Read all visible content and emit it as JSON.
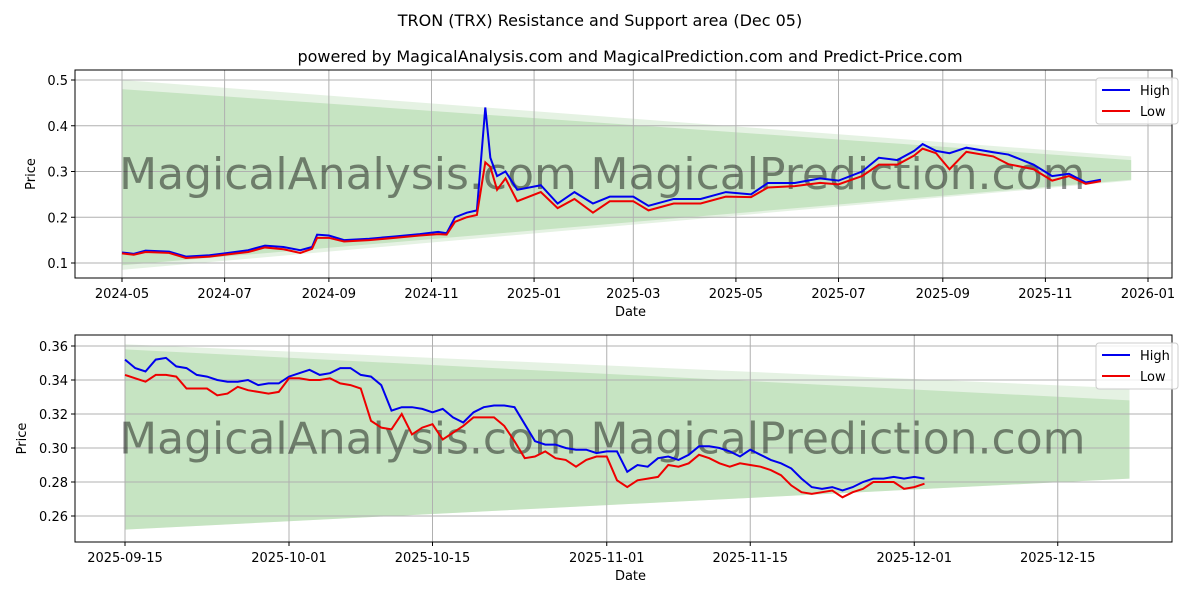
{
  "title": "TRON (TRX) Resistance and Support area (Dec 05)",
  "subtitle": "powered by MagicalAnalysis.com and MagicalPrediction.com and Predict-Price.com",
  "watermarks": [
    "MagicalAnalysis.com",
    "MagicalPrediction.com"
  ],
  "colors": {
    "high": "#0000ee",
    "low": "#ee0000",
    "band": "#a8d5a2"
  },
  "chart_data": [
    {
      "type": "line",
      "xlabel": "Date",
      "ylabel": "Price",
      "legend": {
        "position": "top-right",
        "entries": [
          "High",
          "Low"
        ]
      },
      "grid": true,
      "x_start": "2024-05-01",
      "x_ticks": [
        "2024-05",
        "2024-07",
        "2024-09",
        "2024-11",
        "2025-01",
        "2025-03",
        "2025-05",
        "2025-07",
        "2025-09",
        "2025-11",
        "2026-01"
      ],
      "y_ticks": [
        "0.1",
        "0.2",
        "0.3",
        "0.4",
        "0.5"
      ],
      "ylim": [
        0.065,
        0.52
      ],
      "band": {
        "start": "2024-05-01",
        "end": "2025-12-22",
        "upper_outer": [
          0.5,
          0.333
        ],
        "upper_inner": [
          0.48,
          0.325
        ],
        "lower": [
          0.095,
          0.282
        ],
        "lower_outer": [
          0.085,
          0.28
        ]
      },
      "series_points": [
        [
          "2024-05-01",
          0.123,
          0.121
        ],
        [
          "2024-05-08",
          0.12,
          0.118
        ],
        [
          "2024-05-15",
          0.127,
          0.124
        ],
        [
          "2024-05-29",
          0.125,
          0.122
        ],
        [
          "2024-06-08",
          0.114,
          0.111
        ],
        [
          "2024-06-22",
          0.117,
          0.114
        ],
        [
          "2024-07-01",
          0.121,
          0.118
        ],
        [
          "2024-07-15",
          0.128,
          0.124
        ],
        [
          "2024-07-25",
          0.138,
          0.134
        ],
        [
          "2024-08-05",
          0.135,
          0.13
        ],
        [
          "2024-08-15",
          0.128,
          0.122
        ],
        [
          "2024-08-22",
          0.135,
          0.131
        ],
        [
          "2024-08-25",
          0.162,
          0.155
        ],
        [
          "2024-09-01",
          0.16,
          0.155
        ],
        [
          "2024-09-10",
          0.15,
          0.147
        ],
        [
          "2024-09-25",
          0.153,
          0.15
        ],
        [
          "2024-10-10",
          0.158,
          0.155
        ],
        [
          "2024-10-25",
          0.163,
          0.16
        ],
        [
          "2024-11-05",
          0.168,
          0.163
        ],
        [
          "2024-11-10",
          0.165,
          0.162
        ],
        [
          "2024-11-15",
          0.2,
          0.19
        ],
        [
          "2024-11-22",
          0.21,
          0.2
        ],
        [
          "2024-11-28",
          0.215,
          0.205
        ],
        [
          "2024-12-03",
          0.44,
          0.32
        ],
        [
          "2024-12-06",
          0.33,
          0.31
        ],
        [
          "2024-12-10",
          0.29,
          0.26
        ],
        [
          "2024-12-15",
          0.3,
          0.285
        ],
        [
          "2024-12-22",
          0.26,
          0.235
        ],
        [
          "2025-01-05",
          0.27,
          0.255
        ],
        [
          "2025-01-15",
          0.23,
          0.22
        ],
        [
          "2025-01-25",
          0.255,
          0.24
        ],
        [
          "2025-02-05",
          0.23,
          0.21
        ],
        [
          "2025-02-15",
          0.245,
          0.235
        ],
        [
          "2025-03-01",
          0.245,
          0.235
        ],
        [
          "2025-03-10",
          0.225,
          0.215
        ],
        [
          "2025-03-25",
          0.24,
          0.23
        ],
        [
          "2025-04-10",
          0.24,
          0.23
        ],
        [
          "2025-04-25",
          0.255,
          0.245
        ],
        [
          "2025-05-10",
          0.25,
          0.244
        ],
        [
          "2025-05-20",
          0.275,
          0.265
        ],
        [
          "2025-06-05",
          0.275,
          0.268
        ],
        [
          "2025-06-20",
          0.285,
          0.275
        ],
        [
          "2025-07-01",
          0.28,
          0.272
        ],
        [
          "2025-07-15",
          0.3,
          0.29
        ],
        [
          "2025-07-25",
          0.33,
          0.315
        ],
        [
          "2025-08-05",
          0.325,
          0.315
        ],
        [
          "2025-08-15",
          0.345,
          0.335
        ],
        [
          "2025-08-20",
          0.36,
          0.35
        ],
        [
          "2025-08-28",
          0.345,
          0.34
        ],
        [
          "2025-09-05",
          0.34,
          0.305
        ],
        [
          "2025-09-15",
          0.352,
          0.343
        ],
        [
          "2025-10-01",
          0.342,
          0.333
        ],
        [
          "2025-10-10",
          0.337,
          0.316
        ],
        [
          "2025-10-25",
          0.315,
          0.305
        ],
        [
          "2025-11-05",
          0.29,
          0.28
        ],
        [
          "2025-11-15",
          0.295,
          0.29
        ],
        [
          "2025-11-25",
          0.276,
          0.273
        ],
        [
          "2025-12-04",
          0.282,
          0.279
        ]
      ]
    },
    {
      "type": "line",
      "xlabel": "Date",
      "ylabel": "Price",
      "legend": {
        "position": "top-right",
        "entries": [
          "High",
          "Low"
        ]
      },
      "grid": true,
      "x_start": "2025-09-15",
      "x_ticks": [
        "2025-09-15",
        "2025-10-01",
        "2025-10-15",
        "2025-11-01",
        "2025-11-15",
        "2025-12-01",
        "2025-12-15"
      ],
      "y_ticks": [
        "0.26",
        "0.28",
        "0.30",
        "0.32",
        "0.34",
        "0.36"
      ],
      "ylim": [
        0.245,
        0.367
      ],
      "band": {
        "start": "2025-09-15",
        "end": "2025-12-22",
        "upper_outer": [
          0.361,
          0.335
        ],
        "upper_inner": [
          0.358,
          0.328
        ],
        "lower": [
          0.252,
          0.282
        ],
        "lower_outer": [
          0.252,
          0.282
        ]
      },
      "daily_high": [
        0.352,
        0.347,
        0.345,
        0.352,
        0.353,
        0.348,
        0.347,
        0.343,
        0.342,
        0.34,
        0.339,
        0.339,
        0.34,
        0.337,
        0.338,
        0.338,
        0.342,
        0.344,
        0.346,
        0.343,
        0.344,
        0.347,
        0.347,
        0.343,
        0.342,
        0.337,
        0.322,
        0.324,
        0.324,
        0.323,
        0.321,
        0.323,
        0.318,
        0.315,
        0.321,
        0.324,
        0.325,
        0.325,
        0.324,
        0.314,
        0.304,
        0.302,
        0.302,
        0.3,
        0.299,
        0.299,
        0.297,
        0.298,
        0.298,
        0.286,
        0.29,
        0.289,
        0.294,
        0.295,
        0.293,
        0.296,
        0.301,
        0.301,
        0.3,
        0.298,
        0.295,
        0.299,
        0.296,
        0.293,
        0.291,
        0.288,
        0.282,
        0.277,
        0.276,
        0.277,
        0.275,
        0.277,
        0.28,
        0.282,
        0.282,
        0.283,
        0.282,
        0.283,
        0.282
      ],
      "daily_low": [
        0.343,
        0.341,
        0.339,
        0.343,
        0.343,
        0.342,
        0.335,
        0.335,
        0.335,
        0.331,
        0.332,
        0.336,
        0.334,
        0.333,
        0.332,
        0.333,
        0.341,
        0.341,
        0.34,
        0.34,
        0.341,
        0.338,
        0.337,
        0.335,
        0.316,
        0.312,
        0.311,
        0.32,
        0.308,
        0.312,
        0.314,
        0.305,
        0.309,
        0.313,
        0.318,
        0.318,
        0.318,
        0.313,
        0.304,
        0.294,
        0.295,
        0.298,
        0.294,
        0.293,
        0.289,
        0.293,
        0.295,
        0.295,
        0.281,
        0.277,
        0.281,
        0.282,
        0.283,
        0.29,
        0.289,
        0.291,
        0.296,
        0.294,
        0.291,
        0.289,
        0.291,
        0.29,
        0.289,
        0.287,
        0.284,
        0.278,
        0.274,
        0.273,
        0.274,
        0.275,
        0.271,
        0.274,
        0.276,
        0.28,
        0.28,
        0.28,
        0.276,
        0.277,
        0.279
      ]
    }
  ]
}
